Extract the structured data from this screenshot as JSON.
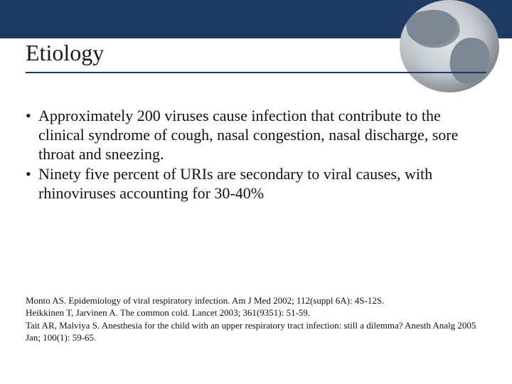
{
  "colors": {
    "topbar": "#1f3a62",
    "rule": "#1f3a62",
    "background": "#ffffff",
    "text": "#111111"
  },
  "typography": {
    "title_fontsize": 32,
    "body_fontsize": 22,
    "ref_fontsize": 13,
    "font_family": "Times New Roman"
  },
  "title": "Etiology",
  "bullets": [
    "Approximately 200 viruses cause infection that contribute to the clinical syndrome of cough, nasal congestion, nasal discharge, sore throat and sneezing.",
    "Ninety five percent of URIs are secondary to viral causes, with rhinoviruses accounting for 30-40%"
  ],
  "references": [
    "Monto AS. Epidemiology of viral respiratory infection. Am J Med 2002; 112(suppl 6A): 4S-12S.",
    "Heikkinen T, Jarvinen A. The common cold. Lancet 2003; 361(9351): 51-59.",
    "Tait AR, Malviya S. Anesthesia for the child with an upper respiratory tract infection: still a dilemma?  Anesth Analg 2005 Jan; 100(1): 59-65."
  ]
}
